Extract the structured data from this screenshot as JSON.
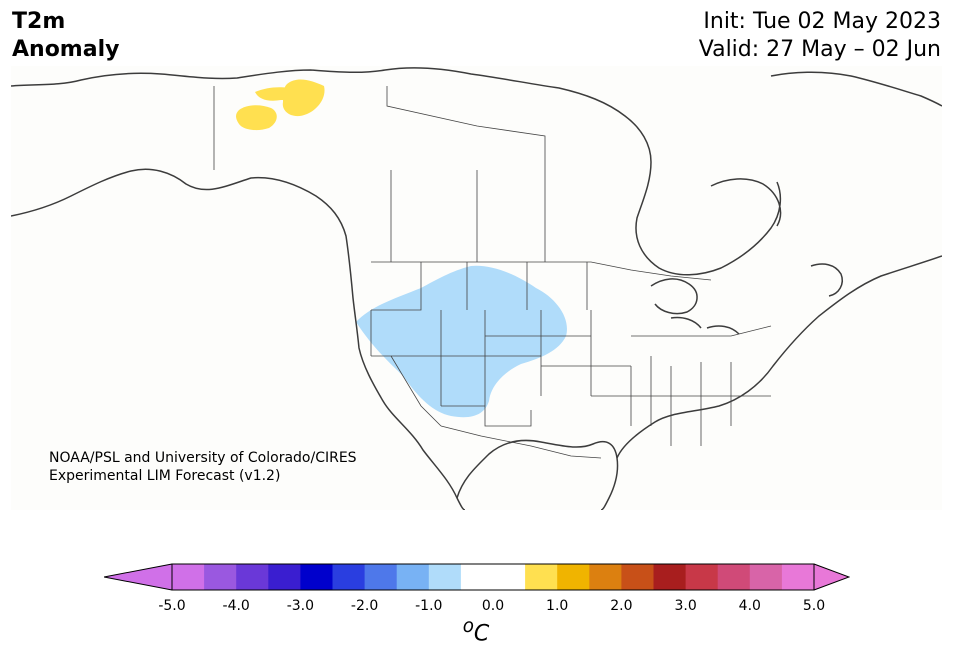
{
  "title": {
    "line1": "T2m",
    "line2": "Anomaly"
  },
  "init_label": "Init: Tue 02 May 2023",
  "valid_label": "Valid: 27 May – 02 Jun",
  "credit": {
    "line1": "NOAA/PSL and University of Colorado/CIRES",
    "line2": "Experimental LIM Forecast (v1.2)"
  },
  "colorbar": {
    "unit": "oC",
    "ticks": [
      "-5.0",
      "-4.0",
      "-3.0",
      "-2.0",
      "-1.0",
      "0.0",
      "1.0",
      "2.0",
      "3.0",
      "4.0",
      "5.0"
    ],
    "under_color": "#d070e8",
    "over_color": "#e878d8",
    "colors": [
      "#d070e8",
      "#9a58e0",
      "#6a38d8",
      "#3a1ed0",
      "#0000cc",
      "#2a3ee0",
      "#4e78ea",
      "#78b2f4",
      "#b0dcfa",
      "#ffffff",
      "#ffffff",
      "#ffe050",
      "#f0b400",
      "#dc8010",
      "#c85018",
      "#a81e1e",
      "#c83848",
      "#d04a78",
      "#d864a8",
      "#e878d8"
    ]
  },
  "map": {
    "region": "North America",
    "anomaly_areas": [
      {
        "name": "cool-anomaly-western-us",
        "level": "-1.0 to -0.5",
        "color": "#b0dcfa"
      },
      {
        "name": "warm-anomaly-yukon-alaska",
        "level": "0.5 to 1.0",
        "color": "#ffe050"
      }
    ]
  }
}
